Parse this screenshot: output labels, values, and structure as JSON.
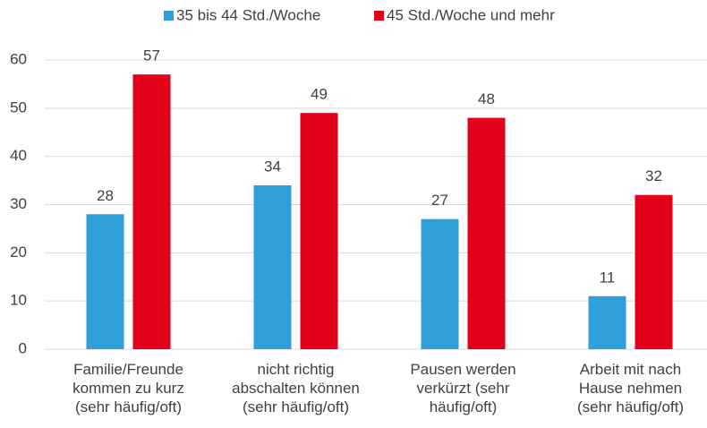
{
  "chart_data": {
    "type": "bar",
    "categories": [
      [
        "Familie/Freunde",
        "kommen zu kurz",
        "(sehr häufig/oft)"
      ],
      [
        "nicht richtig",
        "abschalten können",
        "(sehr häufig/oft)"
      ],
      [
        "Pausen werden",
        "verkürzt (sehr",
        "häufig/oft)"
      ],
      [
        "Arbeit mit nach",
        "Hause nehmen",
        "(sehr häufig/oft)"
      ]
    ],
    "series": [
      {
        "name": "35 bis 44 Std./Woche",
        "color": "#2e9fd8",
        "values": [
          28,
          34,
          27,
          11
        ]
      },
      {
        "name": "45 Std./Woche und mehr",
        "color": "#e2001a",
        "values": [
          57,
          49,
          48,
          32
        ]
      }
    ],
    "ylim": [
      0,
      60
    ],
    "yticks": [
      0,
      10,
      20,
      30,
      40,
      50,
      60
    ],
    "grid": true,
    "legend": "top"
  }
}
